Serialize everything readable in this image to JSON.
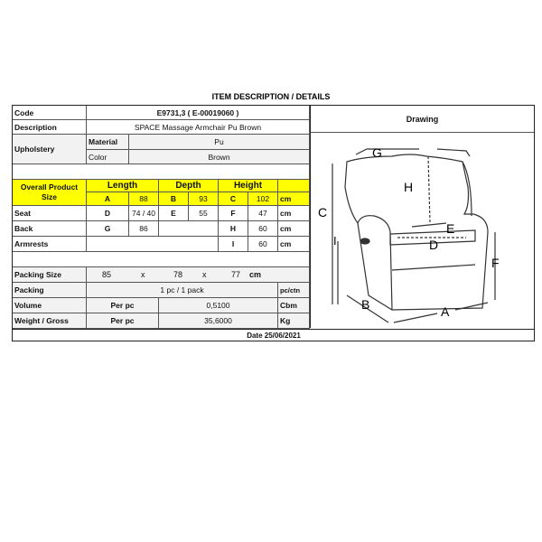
{
  "title": "ITEM DESCRIPTION / DETAILS",
  "code": {
    "label": "Code",
    "value": "E9731,3 ( E-00019060 )"
  },
  "description": {
    "label": "Description",
    "value": "SPACE Massage Armchair Pu Brown"
  },
  "upholstery": {
    "label": "Upholstery",
    "material_label": "Material",
    "material": "Pu",
    "color_label": "Color",
    "color": "Brown"
  },
  "size": {
    "label_line1": "Overall Product",
    "label_line2": "Size",
    "length": "Length",
    "depth": "Depth",
    "height": "Height",
    "A": "A",
    "A_val": "88",
    "B": "B",
    "B_val": "93",
    "C": "C",
    "C_val": "102",
    "unit": "cm"
  },
  "seat": {
    "label": "Seat",
    "D": "D",
    "D_val": "74 / 40",
    "E": "E",
    "E_val": "55",
    "F": "F",
    "F_val": "47",
    "unit": "cm"
  },
  "back": {
    "label": "Back",
    "G": "G",
    "G_val": "86",
    "H": "H",
    "H_val": "60",
    "unit": "cm"
  },
  "armrests": {
    "label": "Armrests",
    "I": "I",
    "I_val": "60",
    "unit": "cm"
  },
  "packing_size": {
    "label": "Packing Size",
    "l": "85",
    "x1": "x",
    "w": "78",
    "x2": "x",
    "h": "77",
    "unit": "cm"
  },
  "packing": {
    "label": "Packing",
    "value": "1 pc / 1 pack",
    "unit": "pc/ctn"
  },
  "volume": {
    "label": "Volume",
    "per": "Per pc",
    "value": "0,5100",
    "unit": "Cbm"
  },
  "weight": {
    "label": "Weight / Gross",
    "per": "Per pc",
    "value": "35,6000",
    "unit": "Kg"
  },
  "date": "Date 25/06/2021",
  "drawing": {
    "label": "Drawing",
    "letters": [
      "G",
      "H",
      "C",
      "I",
      "E",
      "D",
      "F",
      "B",
      "A"
    ]
  },
  "colors": {
    "highlight": "#ffff00"
  }
}
